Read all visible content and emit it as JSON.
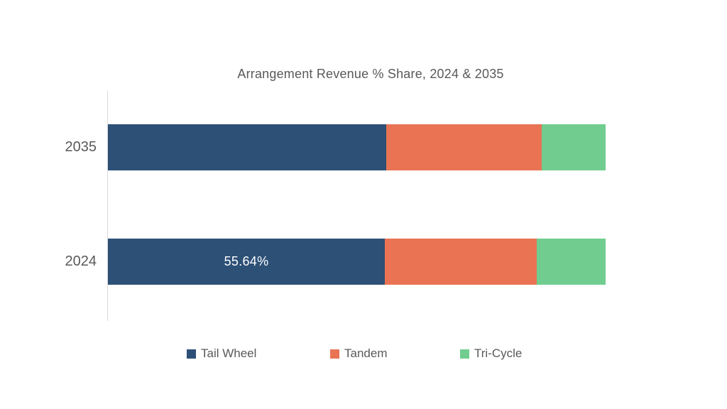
{
  "page": {
    "background_color": "#ffffff",
    "text_color": "#595959",
    "axis_line_color": "#d9d9d9"
  },
  "chart_data": {
    "type": "bar",
    "variant": "horizontal-stacked-100pct",
    "title": "Arrangement Revenue % Share, 2024 & 2035",
    "categories": [
      "2035",
      "2024"
    ],
    "series": [
      {
        "name": "Tail Wheel",
        "color": "#2d5077",
        "values": [
          55.92,
          55.64
        ]
      },
      {
        "name": "Tandem",
        "color": "#e97353",
        "values": [
          31.24,
          30.52
        ]
      },
      {
        "name": "Tri-Cycle",
        "color": "#70cd8f",
        "values": [
          12.84,
          13.84
        ]
      }
    ],
    "data_labels": [
      {
        "category": "2024",
        "series": "Tail Wheel",
        "text": "55.64%"
      }
    ],
    "xlim": [
      0,
      100
    ],
    "grid": false,
    "legend_position": "bottom",
    "data_label_color": "#ffffff"
  }
}
